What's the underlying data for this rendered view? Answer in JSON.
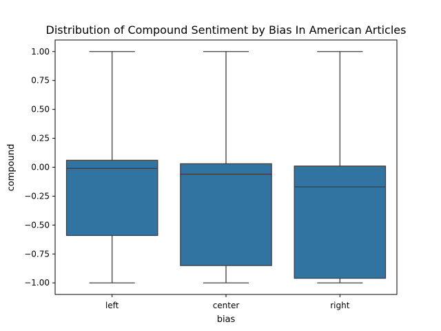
{
  "chart_data": {
    "type": "box",
    "title": "Distribution of Compound Sentiment by Bias In American Articles",
    "xlabel": "bias",
    "ylabel": "compound",
    "categories": [
      "left",
      "center",
      "right"
    ],
    "ylim": [
      -1.1,
      1.1
    ],
    "yticks": [
      1.0,
      0.75,
      0.5,
      0.25,
      0.0,
      -0.25,
      -0.5,
      -0.75,
      -1.0
    ],
    "ytick_labels": [
      "1.00",
      "0.75",
      "0.50",
      "0.25",
      "0.00",
      "−0.25",
      "−0.50",
      "−0.75",
      "−1.00"
    ],
    "boxes": [
      {
        "category": "left",
        "whisker_low": -1.0,
        "q1": -0.59,
        "median": -0.01,
        "q3": 0.06,
        "whisker_high": 1.0
      },
      {
        "category": "center",
        "whisker_low": -1.0,
        "q1": -0.85,
        "median": -0.06,
        "q3": 0.03,
        "whisker_high": 1.0
      },
      {
        "category": "right",
        "whisker_low": -1.0,
        "q1": -0.96,
        "median": -0.17,
        "q3": 0.01,
        "whisker_high": 1.0
      }
    ],
    "grid": false,
    "legend": "none",
    "colors": {
      "box_fill": "#3274a1",
      "box_edge": "#3d3d3d",
      "axis": "#000000"
    }
  }
}
